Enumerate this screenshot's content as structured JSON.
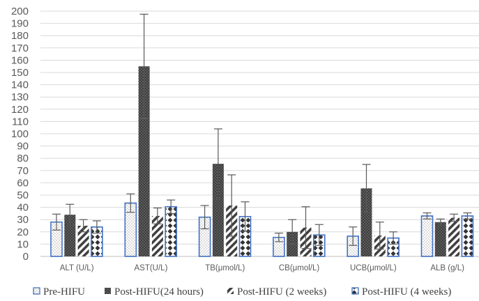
{
  "chart_data": {
    "type": "bar",
    "title": "",
    "xlabel": "",
    "ylabel": "",
    "ylim": [
      0,
      200
    ],
    "y_tick_step": 10,
    "grid": "horizontal",
    "legend_position": "bottom",
    "categories": [
      "ALT (U/L)",
      "AST(U/L)",
      "TB(μmol/L)",
      "CB(μmol/L)",
      "UCB(μmol/L)",
      "ALB  (g/L)"
    ],
    "series": [
      {
        "name": "Pre-HIFU",
        "pattern": "dotted-white",
        "values": [
          28,
          43.5,
          32,
          15.5,
          16.5,
          33
        ],
        "errors": [
          6.5,
          7.5,
          9.5,
          3.5,
          7.5,
          2.5
        ]
      },
      {
        "name": "Post-HIFU(24 hours)",
        "pattern": "dark-dotted",
        "values": [
          34,
          155,
          75.5,
          20,
          55.5,
          28
        ],
        "errors": [
          8.5,
          42.5,
          28.5,
          10,
          19.5,
          2.5
        ]
      },
      {
        "name": "Post-HIFU (2 weeks)",
        "pattern": "diagonal-stripes",
        "values": [
          25,
          33,
          41.5,
          23.5,
          17,
          31.5
        ],
        "errors": [
          5,
          6.5,
          25,
          17,
          11,
          3
        ]
      },
      {
        "name": "Post-HIFU (4 weeks)",
        "pattern": "diamond-checker",
        "values": [
          24,
          40.5,
          32.5,
          17.5,
          15,
          33
        ],
        "errors": [
          5,
          5.5,
          12,
          8.5,
          5,
          2.5
        ]
      }
    ],
    "colors": {
      "outline_blue": "#4472c4",
      "dark": "#404040",
      "grid": "#d9d9d9",
      "axis_text": "#595959",
      "error_bar": "#595959"
    }
  }
}
